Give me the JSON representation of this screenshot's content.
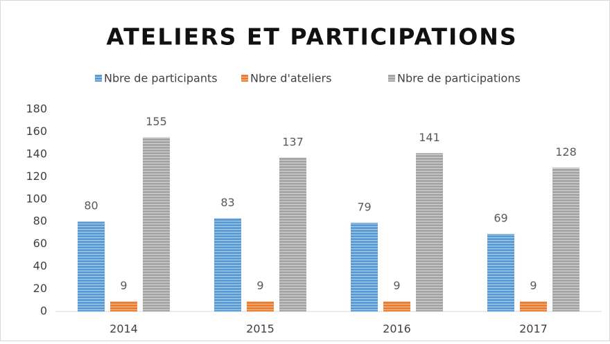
{
  "chart_data": {
    "type": "bar",
    "title": "ATELIERS ET PARTICIPATIONS",
    "categories": [
      "2014",
      "2015",
      "2016",
      "2017"
    ],
    "series": [
      {
        "name": "Nbre de participants",
        "color": "#5b9bd5",
        "values": [
          80,
          83,
          79,
          69
        ]
      },
      {
        "name": "Nbre d'ateliers",
        "color": "#ed7d31",
        "values": [
          9,
          9,
          9,
          9
        ]
      },
      {
        "name": "Nbre de participations",
        "color": "#a5a5a5",
        "values": [
          155,
          137,
          141,
          128
        ]
      }
    ],
    "ylim": [
      0,
      180
    ],
    "yticks": [
      0,
      20,
      40,
      60,
      80,
      100,
      120,
      140,
      160,
      180
    ],
    "grid": false,
    "legend": "top"
  }
}
